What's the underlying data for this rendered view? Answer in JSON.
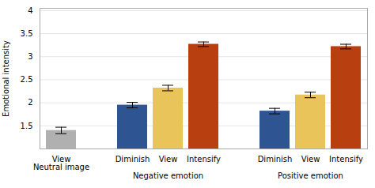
{
  "chart_data": {
    "type": "bar",
    "ylabel": "Emotional intensity",
    "groups": [
      {
        "label": null,
        "categories": [
          "View\nNeutral image"
        ],
        "values": [
          1.4
        ],
        "errors": [
          0.07
        ],
        "colors": [
          "#b0b0b0"
        ]
      },
      {
        "label": "Negative emotion",
        "categories": [
          "Diminish",
          "View",
          "Intensify"
        ],
        "values": [
          1.95,
          2.32,
          3.27
        ],
        "errors": [
          0.06,
          0.06,
          0.05
        ],
        "colors": [
          "#2e5591",
          "#e8c45a",
          "#b84010"
        ]
      },
      {
        "label": "Positive emotion",
        "categories": [
          "Diminish",
          "View",
          "Intensify"
        ],
        "values": [
          1.82,
          2.17,
          3.22
        ],
        "errors": [
          0.06,
          0.06,
          0.05
        ],
        "colors": [
          "#2e5591",
          "#e8c45a",
          "#b84010"
        ]
      }
    ],
    "ylim": [
      1.0,
      4.05
    ],
    "yticks": [
      1.5,
      2,
      2.5,
      3,
      3.5,
      4
    ],
    "grid": true
  }
}
